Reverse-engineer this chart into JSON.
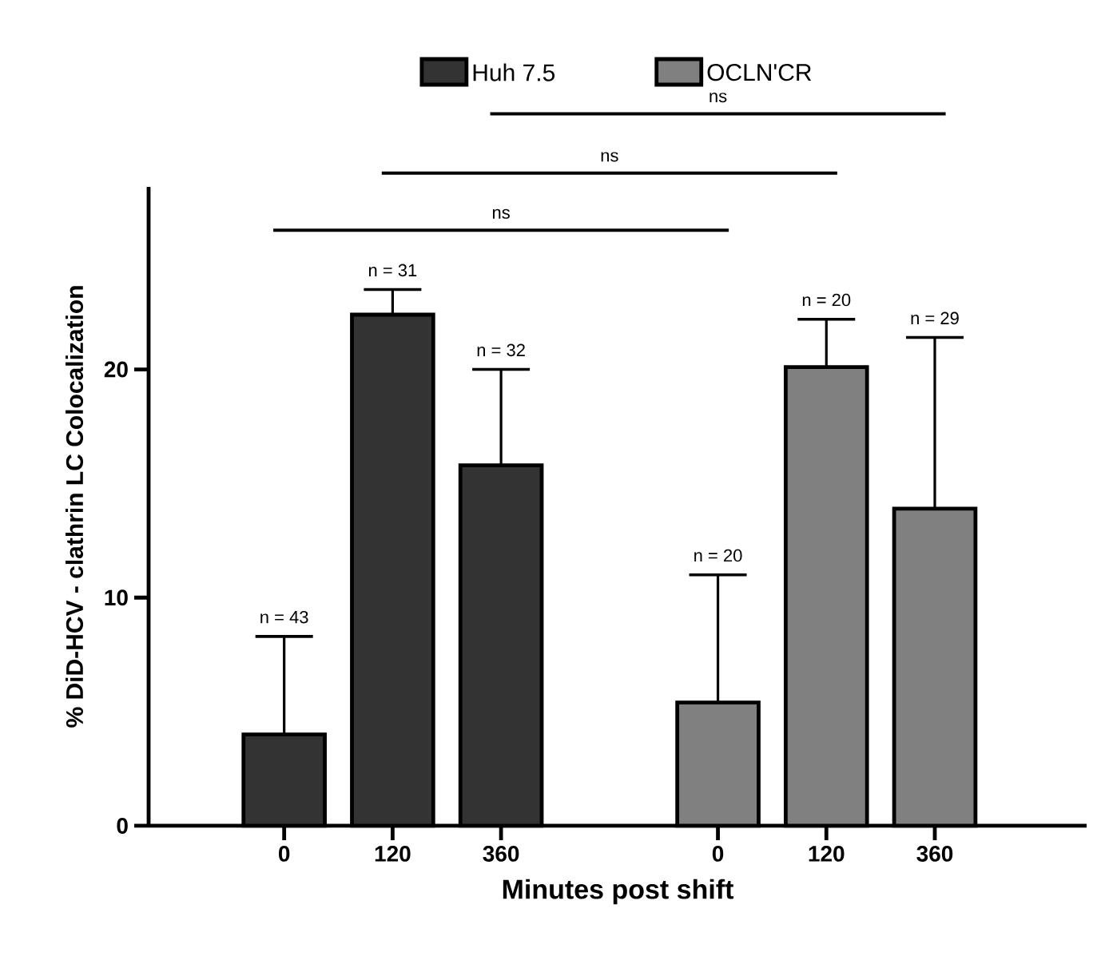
{
  "chart_data": {
    "type": "bar",
    "xlabel": "Minutes post shift",
    "ylabel": "% DiD-HCV - clathrin LC Colocalization",
    "categories": [
      "0",
      "120",
      "360",
      null,
      "0",
      "120",
      "360"
    ],
    "series": [
      {
        "name": "Huh 7.5",
        "color": "#333333",
        "values": [
          4.0,
          22.4,
          15.8,
          null,
          null,
          null,
          null
        ],
        "errors": [
          [
            4.0,
            8.3
          ],
          [
            22.4,
            23.5
          ],
          [
            15.8,
            20.0
          ],
          null,
          null,
          null,
          null
        ]
      },
      {
        "name": "OCLN'CR",
        "color": "#808080",
        "values": [
          null,
          null,
          null,
          null,
          5.4,
          20.1,
          13.9
        ],
        "errors": [
          null,
          null,
          null,
          null,
          [
            5.4,
            11.0
          ],
          [
            20.1,
            22.2
          ],
          [
            13.9,
            21.4
          ]
        ]
      }
    ],
    "ylim": [
      0,
      28
    ],
    "yticks": [
      0,
      10,
      20
    ],
    "legend": "top",
    "annotations": [
      {
        "text": "n = 43",
        "y": 8.3
      },
      {
        "text": "n = 31",
        "y": 23.5
      },
      {
        "text": "n = 32",
        "y": 20.0
      },
      {
        "text": "n = 20",
        "y": 11.0
      },
      {
        "text": "n = 20",
        "y": 22.2
      },
      {
        "text": "n = 29",
        "y": 21.4
      },
      "ns",
      "ns",
      "ns"
    ]
  }
}
